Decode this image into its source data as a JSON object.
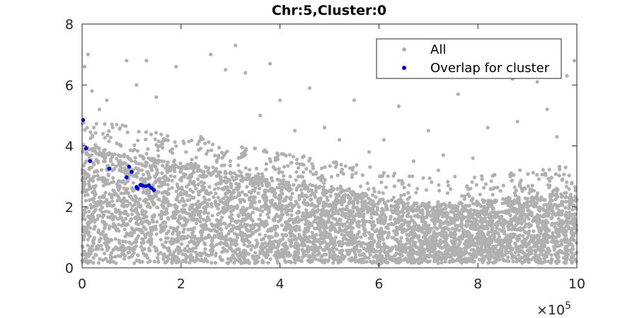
{
  "chart_data": {
    "type": "scatter",
    "title": "Chr:5,Cluster:0",
    "xlabel": "",
    "ylabel": "",
    "xlim": [
      0,
      1000000
    ],
    "ylim": [
      0,
      8
    ],
    "x_ticks": [
      0,
      200000,
      400000,
      600000,
      800000,
      1000000
    ],
    "x_tick_labels": [
      "0",
      "2",
      "4",
      "6",
      "8",
      "10"
    ],
    "x_exponent_label": "×10",
    "x_exponent_power": "5",
    "y_ticks": [
      0,
      2,
      4,
      6,
      8
    ],
    "y_tick_labels": [
      "0",
      "2",
      "4",
      "6",
      "8"
    ],
    "grid": false,
    "legend": {
      "placement": "top-right",
      "entries": [
        "All",
        "Overlap for cluster"
      ]
    },
    "colors": {
      "all": "#b0b0b0",
      "overlap": "#0000d8",
      "axis": "#262626"
    },
    "series": [
      {
        "name": "All",
        "color": "#b0b0b0",
        "x": [
          5000,
          12000,
          20000,
          35000,
          50000,
          70000,
          90000,
          110000,
          130000,
          150000,
          170000,
          190000,
          210000,
          240000,
          260000,
          290000,
          310000,
          330000,
          360000,
          380000,
          400000,
          430000,
          460000,
          490000,
          520000,
          550000,
          580000,
          610000,
          640000,
          670000,
          700000,
          730000,
          760000,
          790000,
          820000,
          850000,
          870000,
          880000,
          900000,
          920000,
          940000,
          960000,
          980000,
          995000,
          3000,
          8000,
          15000,
          25000,
          45000,
          60000,
          85000,
          100000,
          125000,
          140000,
          160000,
          185000,
          230000,
          270000,
          295000,
          340000,
          355000,
          390000,
          420000,
          440000,
          500000,
          530000,
          570000,
          600000,
          650000,
          690000,
          720000,
          750000,
          800000,
          830000,
          860000,
          890000,
          910000,
          945000,
          970000,
          990000
        ],
        "y": [
          6.6,
          7.0,
          5.8,
          5.2,
          5.5,
          4.7,
          6.8,
          6.0,
          6.8,
          5.6,
          4.2,
          6.6,
          3.8,
          4.3,
          7.0,
          6.5,
          7.3,
          6.4,
          5.0,
          6.7,
          5.5,
          4.5,
          5.9,
          4.6,
          4.2,
          5.5,
          3.8,
          4.2,
          5.3,
          3.5,
          4.5,
          3.7,
          5.7,
          3.6,
          4.6,
          6.6,
          6.2,
          4.8,
          6.4,
          6.1,
          5.2,
          4.3,
          6.3,
          6.8,
          1.0,
          2.5,
          0.5,
          3.0,
          1.5,
          2.8,
          0.3,
          1.9,
          2.2,
          0.8,
          3.5,
          1.2,
          2.6,
          0.4,
          2.9,
          1.7,
          0.2,
          2.1,
          1.4,
          3.4,
          0.6,
          2.3,
          1.1,
          0.1,
          2.0,
          1.6,
          3.2,
          0.7,
          1.3,
          2.4,
          0.9,
          1.8,
          2.7,
          1.0,
          0.5,
          2.2
        ]
      },
      {
        "name": "Overlap for cluster",
        "color": "#0000d8",
        "x": [
          2000,
          8000,
          16000,
          55000,
          90000,
          95000,
          100000,
          110000,
          112000,
          118000,
          122000,
          128000,
          135000,
          140000,
          145000
        ],
        "y": [
          4.85,
          3.92,
          3.5,
          3.25,
          2.97,
          3.32,
          3.15,
          2.65,
          2.6,
          2.72,
          2.7,
          2.68,
          2.7,
          2.62,
          2.55
        ]
      }
    ]
  }
}
